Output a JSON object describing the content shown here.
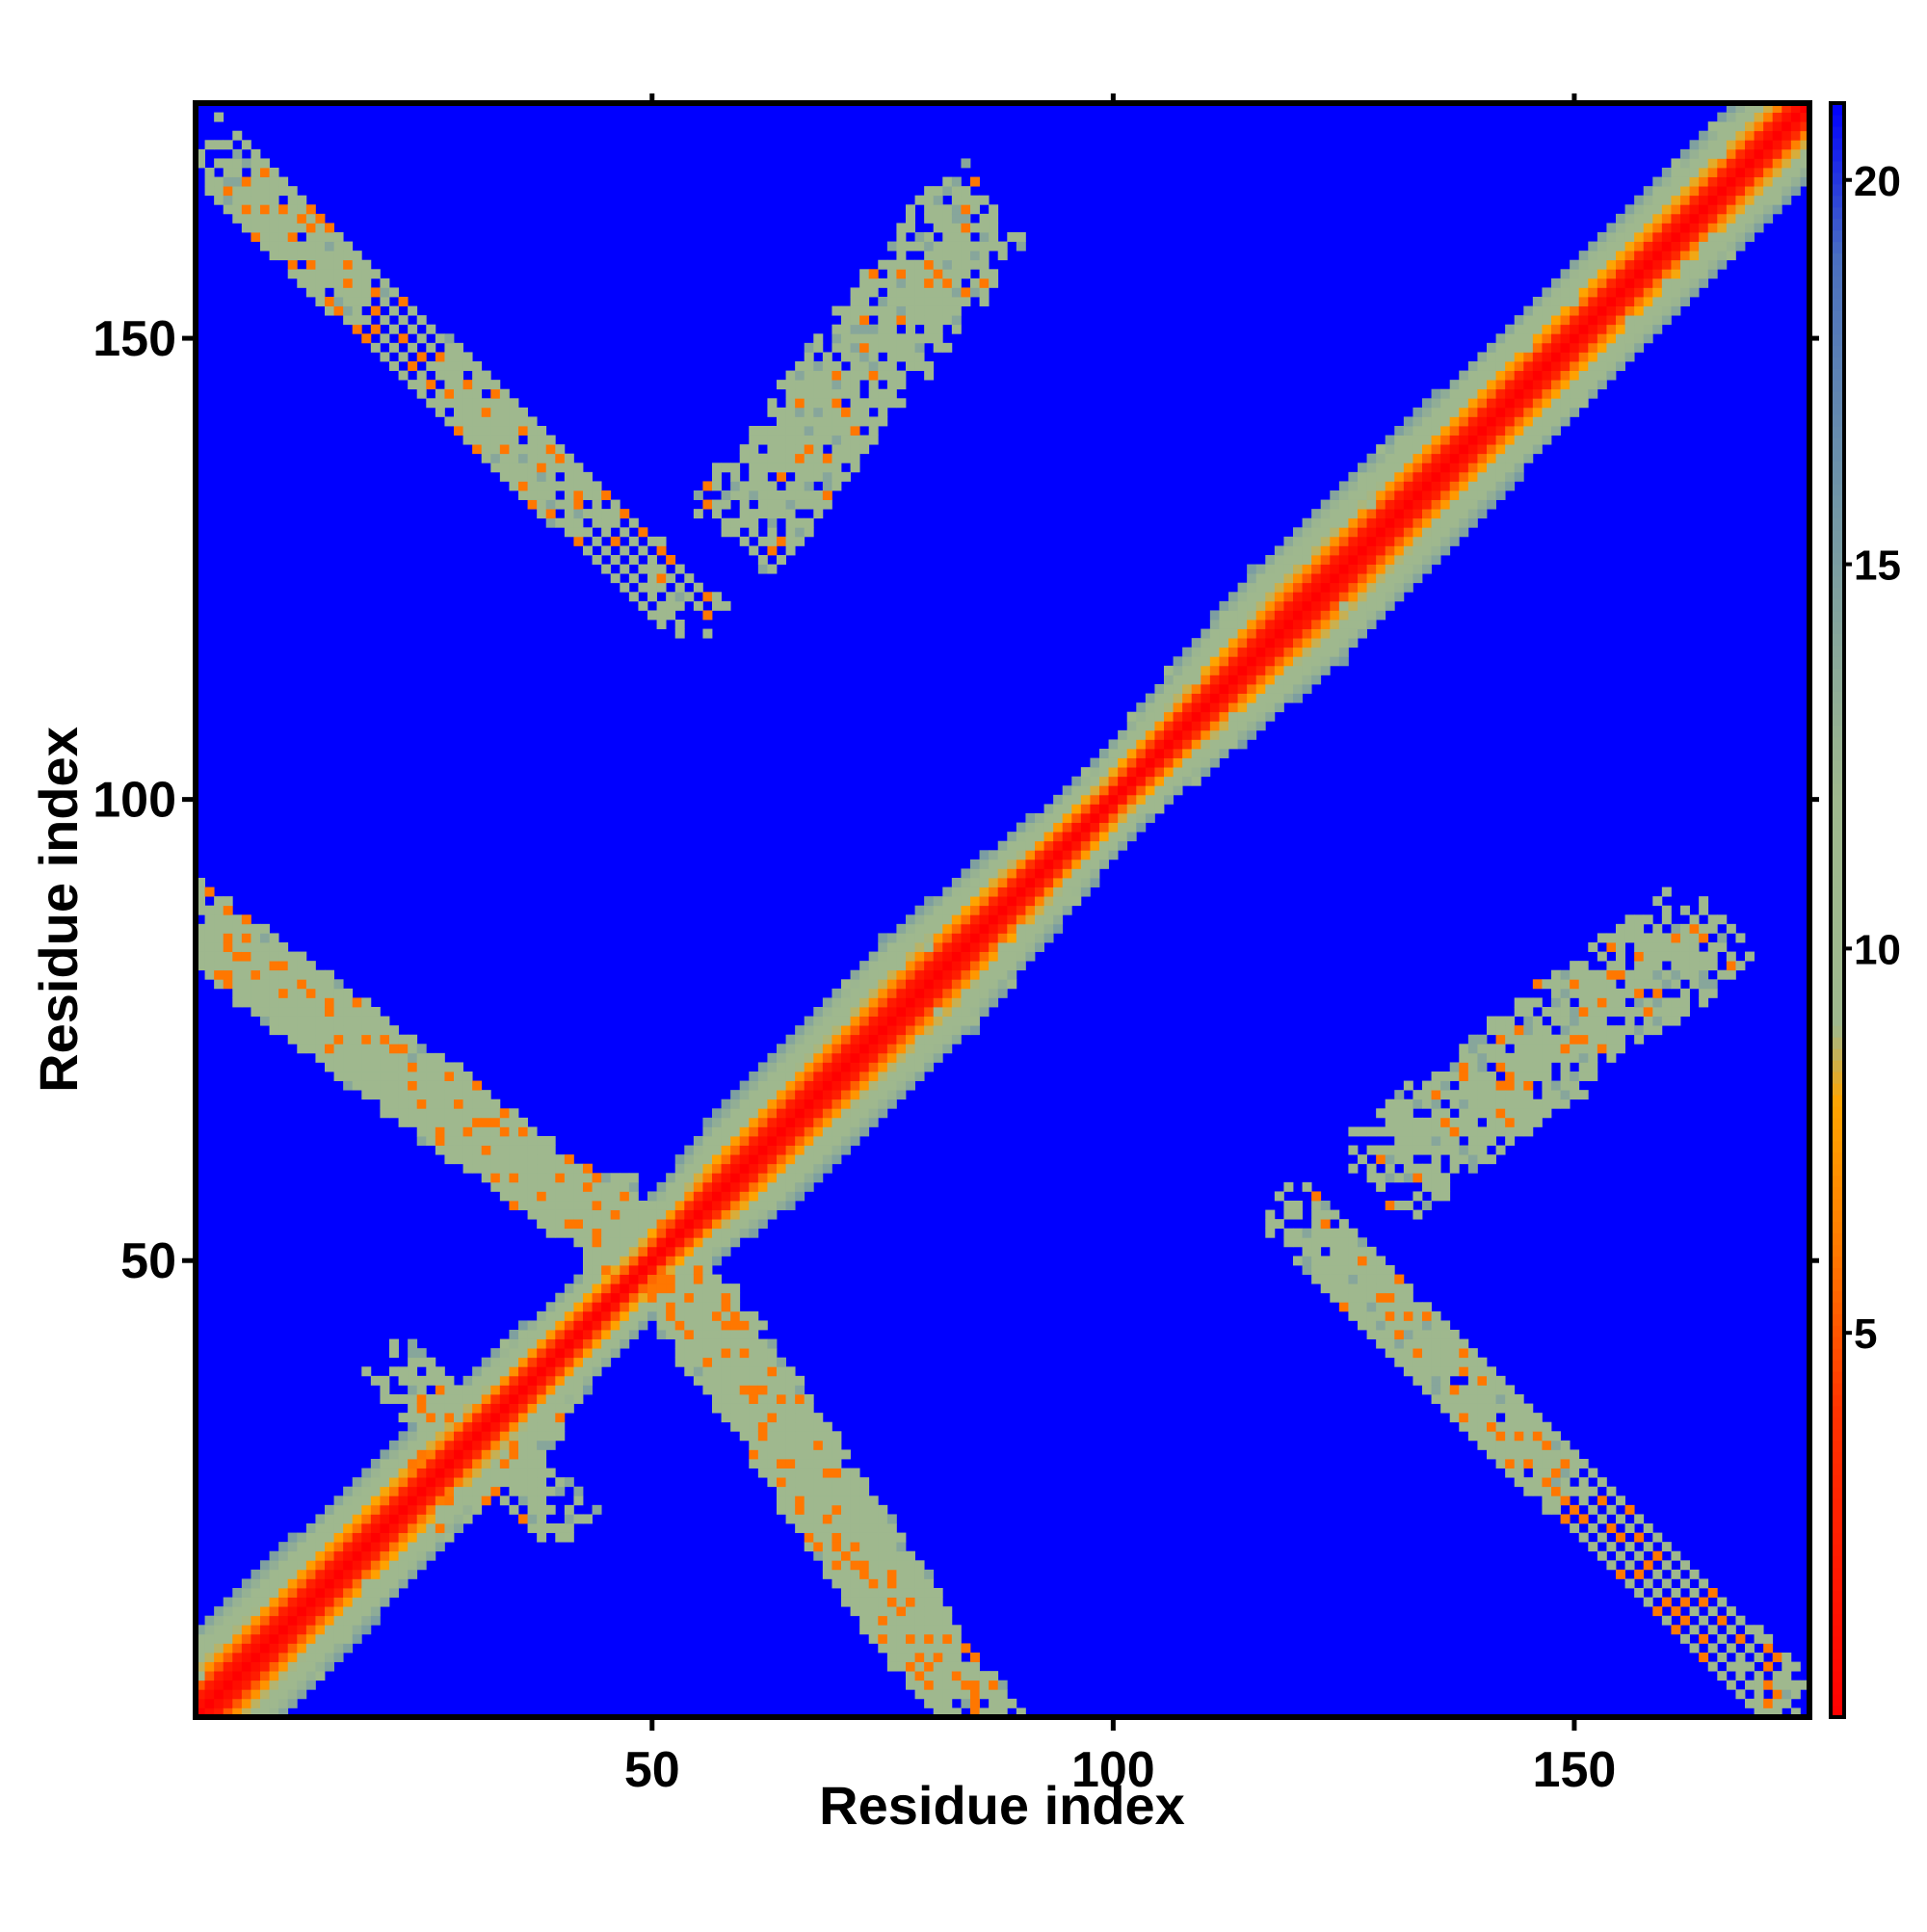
{
  "chart_data": {
    "type": "heatmap",
    "title": "",
    "xlabel": "Residue index",
    "ylabel": "Residue index",
    "n_residues": 175,
    "xlim": [
      1,
      175
    ],
    "ylim": [
      1,
      175
    ],
    "x_ticks": [
      50,
      100,
      150
    ],
    "y_ticks": [
      50,
      100,
      150
    ],
    "x_tick_labels": [
      "50",
      "100",
      "150"
    ],
    "y_tick_labels": [
      "50",
      "100",
      "150"
    ],
    "colorbar": {
      "range": [
        0,
        21
      ],
      "ticks": [
        5,
        10,
        15,
        20
      ],
      "tick_labels": [
        "5",
        "10",
        "15",
        "20"
      ],
      "color_stops": [
        {
          "value": 0,
          "color": "#ff0000"
        },
        {
          "value": 4,
          "color": "#ff3300"
        },
        {
          "value": 6,
          "color": "#ff7700"
        },
        {
          "value": 8,
          "color": "#ffa500"
        },
        {
          "value": 9,
          "color": "#9fb88e"
        },
        {
          "value": 12,
          "color": "#9fb88e"
        },
        {
          "value": 16,
          "color": "#6f94a8"
        },
        {
          "value": 19,
          "color": "#4a6fc0"
        },
        {
          "value": 21,
          "color": "#0000ff"
        }
      ]
    },
    "background_value": 21,
    "diagonal_band": {
      "value_profile": [
        {
          "offset": 0,
          "value": 0
        },
        {
          "offset": 2,
          "value": 2
        },
        {
          "offset": 3,
          "value": 5
        },
        {
          "offset": 4,
          "value": 7
        },
        {
          "offset": 6,
          "value": 10
        },
        {
          "offset": 8,
          "value": 12
        },
        {
          "offset": 10,
          "value": 15
        }
      ],
      "width_profile": [
        {
          "residue": 1,
          "half_width": 10
        },
        {
          "residue": 30,
          "half_width": 8
        },
        {
          "residue": 50,
          "half_width": 6
        },
        {
          "residue": 60,
          "half_width": 9
        },
        {
          "residue": 80,
          "half_width": 10
        },
        {
          "residue": 100,
          "half_width": 6
        },
        {
          "residue": 120,
          "half_width": 10
        },
        {
          "residue": 140,
          "half_width": 9
        },
        {
          "residue": 175,
          "half_width": 8
        }
      ]
    },
    "contact_regions": [
      {
        "i_start": 2,
        "i_end": 50,
        "j_start": 85,
        "j_end": 50,
        "width": 11,
        "density": 0.55,
        "value": 11
      },
      {
        "i_start": 50,
        "i_end": 83,
        "j_start": 52,
        "j_end": 3,
        "width": 12,
        "density": 0.55,
        "value": 11
      },
      {
        "i_start": 5,
        "i_end": 52,
        "j_start": 167,
        "j_end": 122,
        "width": 9,
        "density": 0.45,
        "value": 11
      },
      {
        "i_start": 122,
        "i_end": 172,
        "j_start": 52,
        "j_end": 3,
        "width": 9,
        "density": 0.45,
        "value": 11
      },
      {
        "i_start": 60,
        "i_end": 85,
        "j_start": 130,
        "j_end": 163,
        "width": 8,
        "density": 0.4,
        "value": 11
      },
      {
        "i_start": 130,
        "i_end": 163,
        "j_start": 60,
        "j_end": 85,
        "width": 8,
        "density": 0.4,
        "value": 11
      },
      {
        "i_start": 24,
        "i_end": 38,
        "j_start": 36,
        "j_end": 24,
        "width": 7,
        "density": 0.5,
        "value": 11
      },
      {
        "i_start": 24,
        "i_end": 38,
        "j_start": 24,
        "j_end": 36,
        "width": 7,
        "density": 0.5,
        "value": 11
      }
    ]
  }
}
